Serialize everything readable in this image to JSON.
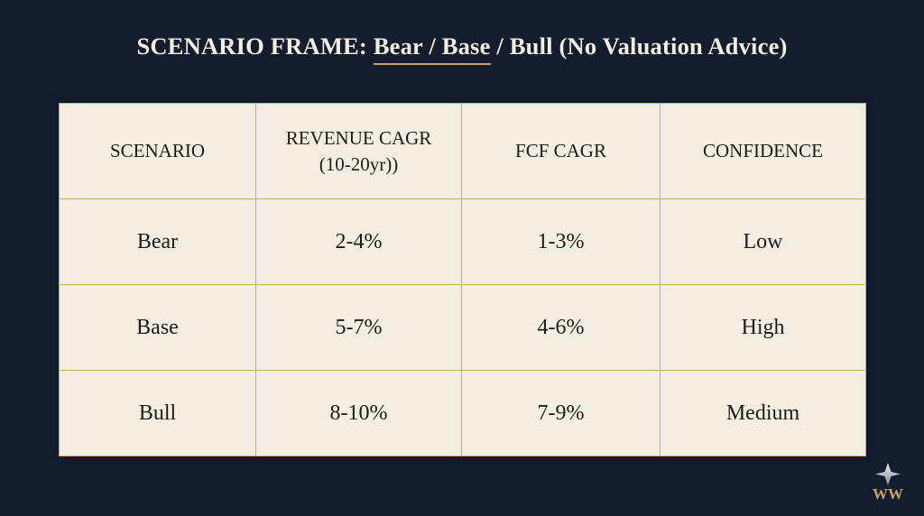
{
  "title": {
    "prefix": "SCENARIO FRAME: ",
    "highlight": "Bear / Base",
    "suffix": " / Bull (No Valuation Advice)"
  },
  "table": {
    "headers": [
      {
        "line1": "SCENARIO",
        "line2": ""
      },
      {
        "line1": "REVENUE CAGR",
        "line2": "(10-20yr))"
      },
      {
        "line1": "FCF CAGR",
        "line2": ""
      },
      {
        "line1": "CONFIDENCE",
        "line2": ""
      }
    ],
    "rows": [
      [
        "Bear",
        "2-4%",
        "1-3%",
        "Low"
      ],
      [
        "Base",
        "5-7%",
        "4-6%",
        "High"
      ],
      [
        "Bull",
        "8-10%",
        "7-9%",
        "Medium"
      ]
    ]
  },
  "logo": {
    "text": "WW",
    "icon": "star-logo-icon"
  },
  "colors": {
    "background": "#131d2e",
    "table_bg": "#f3eee1",
    "border": "#c9a96c",
    "accent": "#c4a568"
  }
}
